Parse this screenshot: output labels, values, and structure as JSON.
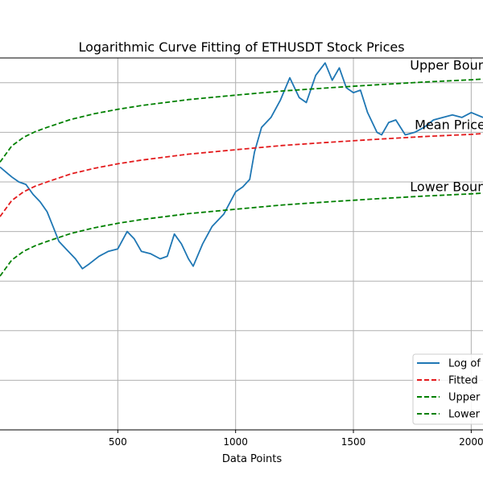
{
  "chart_data": {
    "type": "line",
    "title": "Logarithmic Curve Fitting of ETHUSDT Stock Prices",
    "xlabel": "Data Points",
    "ylabel": "",
    "xlim": [
      0,
      2050
    ],
    "ylim": [
      0,
      15
    ],
    "x_ticks": [
      500,
      1000,
      1500,
      2000
    ],
    "grid": true,
    "legend_position": "lower-right",
    "annotations": [
      {
        "text": "Upper Bound",
        "x": 1740,
        "y": 14.4
      },
      {
        "text": "Mean Price",
        "x": 1760,
        "y": 12.0
      },
      {
        "text": "Lower Bound",
        "x": 1740,
        "y": 9.5
      }
    ],
    "series": [
      {
        "name": "Log of Price",
        "color": "#1f77b4",
        "style": "solid",
        "x": [
          0,
          25,
          50,
          80,
          110,
          140,
          170,
          200,
          225,
          250,
          280,
          320,
          350,
          380,
          420,
          460,
          500,
          540,
          570,
          600,
          640,
          680,
          710,
          740,
          770,
          800,
          820,
          860,
          900,
          950,
          1000,
          1030,
          1060,
          1080,
          1110,
          1150,
          1190,
          1230,
          1270,
          1300,
          1340,
          1380,
          1410,
          1440,
          1470,
          1500,
          1530,
          1560,
          1600,
          1620,
          1650,
          1680,
          1720,
          1760,
          1800,
          1840,
          1880,
          1920,
          1960,
          2000,
          2050
        ],
        "y": [
          10.6,
          10.4,
          10.2,
          10.0,
          9.9,
          9.5,
          9.2,
          8.8,
          8.2,
          7.6,
          7.3,
          6.9,
          6.5,
          6.7,
          7.0,
          7.2,
          7.3,
          8.0,
          7.7,
          7.2,
          7.1,
          6.9,
          7.0,
          7.9,
          7.5,
          6.9,
          6.6,
          7.5,
          8.2,
          8.7,
          9.6,
          9.8,
          10.1,
          11.2,
          12.2,
          12.6,
          13.3,
          14.2,
          13.4,
          13.2,
          14.3,
          14.8,
          14.1,
          14.6,
          13.8,
          13.6,
          13.7,
          12.8,
          12.0,
          11.9,
          12.4,
          12.5,
          11.9,
          12.0,
          12.2,
          12.5,
          12.6,
          12.7,
          12.6,
          12.8,
          12.6
        ]
      },
      {
        "name": "Fitted",
        "color": "#e31a1c",
        "style": "dashed",
        "x": [
          0,
          50,
          100,
          150,
          200,
          300,
          400,
          500,
          600,
          700,
          800,
          1000,
          1200,
          1400,
          1600,
          1800,
          2000,
          2050
        ],
        "y": [
          8.6,
          9.25,
          9.6,
          9.83,
          10.0,
          10.32,
          10.55,
          10.73,
          10.88,
          11.0,
          11.12,
          11.3,
          11.47,
          11.6,
          11.72,
          11.83,
          11.92,
          11.95
        ]
      },
      {
        "name": "Upper",
        "color": "#008000",
        "style": "dashed",
        "x": [
          0,
          50,
          100,
          150,
          200,
          300,
          400,
          500,
          600,
          700,
          800,
          1000,
          1200,
          1400,
          1600,
          1800,
          2000,
          2050
        ],
        "y": [
          10.8,
          11.45,
          11.8,
          12.03,
          12.2,
          12.52,
          12.75,
          12.93,
          13.08,
          13.2,
          13.32,
          13.5,
          13.67,
          13.8,
          13.92,
          14.03,
          14.12,
          14.15
        ]
      },
      {
        "name": "Lower",
        "color": "#008000",
        "style": "dashed",
        "x": [
          0,
          50,
          100,
          150,
          200,
          300,
          400,
          500,
          600,
          700,
          800,
          1000,
          1200,
          1400,
          1600,
          1800,
          2000,
          2050
        ],
        "y": [
          6.2,
          6.85,
          7.2,
          7.43,
          7.6,
          7.92,
          8.15,
          8.33,
          8.48,
          8.6,
          8.72,
          8.9,
          9.07,
          9.2,
          9.32,
          9.43,
          9.52,
          9.55
        ]
      }
    ]
  }
}
